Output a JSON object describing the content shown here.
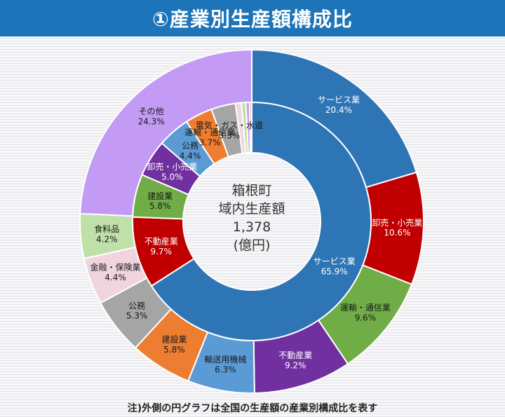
{
  "header": {
    "title": "①産業別生産額構成比"
  },
  "footnote": "注)外側の円グラフは全国の生産額の産業別構成比を表す",
  "chart_data": {
    "type": "pie",
    "center_label": [
      "箱根町",
      "域内生産額",
      "1,378",
      "(億円)"
    ],
    "outer": [
      {
        "label": "サービス業",
        "value": 20.4,
        "display": "20.4%",
        "color": "#2e75b6"
      },
      {
        "label": "卸売・小売業",
        "value": 10.6,
        "display": "10.6%",
        "color": "#c00000"
      },
      {
        "label": "運輸・通信業",
        "value": 9.6,
        "display": "9.6%",
        "color": "#70ad47"
      },
      {
        "label": "不動産業",
        "value": 9.2,
        "display": "9.2%",
        "color": "#7030a0"
      },
      {
        "label": "輸送用機械",
        "value": 6.3,
        "display": "6.3%",
        "color": "#5b9bd5"
      },
      {
        "label": "建設業",
        "value": 5.8,
        "display": "5.8%",
        "color": "#ed7d31"
      },
      {
        "label": "公務",
        "value": 5.3,
        "display": "5.3%",
        "color": "#a5a5a5"
      },
      {
        "label": "金融・保険業",
        "value": 4.4,
        "display": "4.4%",
        "color": "#f0d4de"
      },
      {
        "label": "食料品",
        "value": 4.2,
        "display": "4.2%",
        "color": "#bfe0a8"
      },
      {
        "label": "その他",
        "value": 24.3,
        "display": "24.3%",
        "color": "#c39bf5"
      }
    ],
    "inner": [
      {
        "label": "サービス業",
        "value": 65.9,
        "display": "65.9%",
        "color": "#2e75b6"
      },
      {
        "label": "不動産業",
        "value": 9.7,
        "display": "9.7%",
        "color": "#c00000"
      },
      {
        "label": "建設業",
        "value": 5.8,
        "display": "5.8%",
        "color": "#70ad47"
      },
      {
        "label": "卸売・小売業",
        "value": 5.0,
        "display": "5.0%",
        "color": "#7030a0"
      },
      {
        "label": "公務",
        "value": 4.4,
        "display": "4.4%",
        "color": "#5b9bd5"
      },
      {
        "label": "運輸・通信業",
        "value": 3.7,
        "display": "3.7%",
        "color": "#ed7d31"
      },
      {
        "label": "電気・ガス・水道",
        "value": 3.3,
        "display": "3.3%",
        "color": "#a5a5a5"
      },
      {
        "label": "",
        "value": 0.8,
        "display": "",
        "color": "#f0d4de"
      },
      {
        "label": "",
        "value": 0.6,
        "display": "",
        "color": "#bfe0a8"
      },
      {
        "label": "",
        "value": 0.5,
        "display": "",
        "color": "#c39bf5"
      },
      {
        "label": "",
        "value": 0.3,
        "display": "",
        "color": "#f4b183"
      }
    ]
  }
}
